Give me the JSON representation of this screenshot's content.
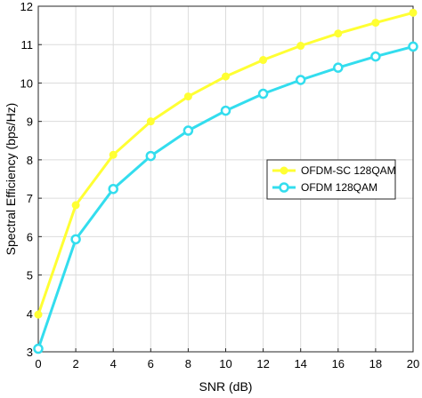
{
  "chart_data": {
    "type": "line",
    "title": "",
    "xlabel": "SNR (dB)",
    "ylabel": "Spectral Efficiency (bps/Hz)",
    "xlim": [
      0,
      20
    ],
    "ylim": [
      3,
      12
    ],
    "x_ticks": [
      "0",
      "2",
      "4",
      "6",
      "8",
      "10",
      "12",
      "14",
      "16",
      "18",
      "20"
    ],
    "y_ticks": [
      "3",
      "4",
      "5",
      "6",
      "7",
      "8",
      "9",
      "10",
      "11",
      "12"
    ],
    "grid": true,
    "legend_position": "right-middle",
    "x": [
      0,
      2,
      4,
      6,
      8,
      10,
      12,
      14,
      16,
      18,
      20
    ],
    "series": [
      {
        "name": "OFDM-SC 128QAM",
        "color": "#ffff33",
        "marker": "filled-circle",
        "values": [
          3.97,
          6.82,
          8.13,
          9.0,
          9.65,
          10.17,
          10.6,
          10.97,
          11.29,
          11.57,
          11.83
        ]
      },
      {
        "name": "OFDM 128QAM",
        "color": "#33ddee",
        "marker": "open-circle",
        "values": [
          3.08,
          5.93,
          7.24,
          8.1,
          8.76,
          9.28,
          9.72,
          10.08,
          10.4,
          10.69,
          10.95
        ]
      }
    ]
  }
}
